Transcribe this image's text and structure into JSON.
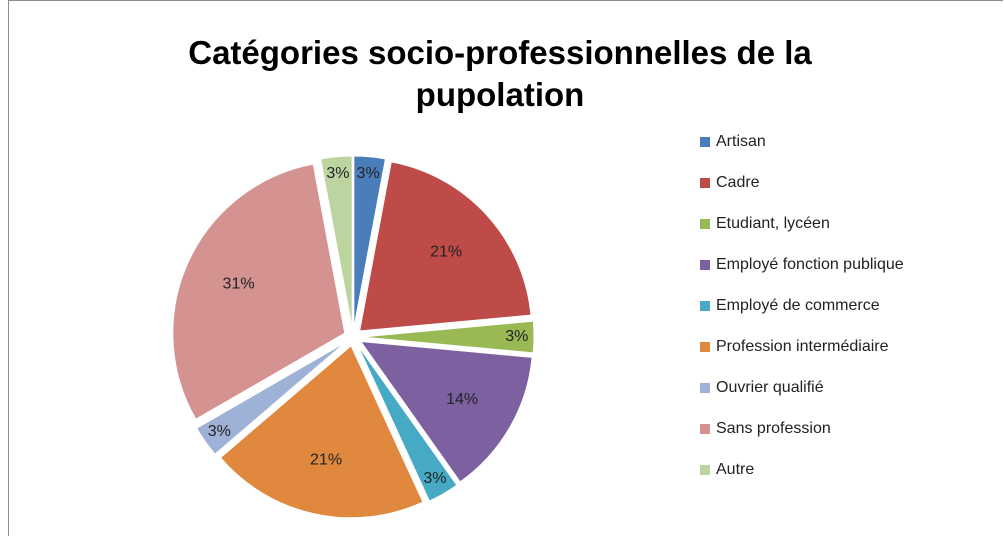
{
  "chart_data": {
    "type": "pie",
    "title": "Catégories socio-professionnelles de la pupolation",
    "categories": [
      "Artisan",
      "Cadre",
      "Etudiant, lycéen",
      "Employé fonction publique",
      "Employé de commerce",
      "Profession intermédiaire",
      "Ouvrier qualifié",
      "Sans profession",
      "Autre"
    ],
    "values": [
      3,
      21,
      3,
      14,
      3,
      21,
      3,
      31,
      3
    ],
    "value_labels": [
      "3%",
      "21%",
      "3%",
      "14%",
      "3%",
      "21%",
      "3%",
      "31%",
      "3%"
    ],
    "colors": [
      "#4a7ebb",
      "#be4b48",
      "#98b954",
      "#7d60a0",
      "#46aac5",
      "#e0883e",
      "#9eb1d6",
      "#d49391",
      "#bcd4a0"
    ],
    "legend": "right"
  }
}
